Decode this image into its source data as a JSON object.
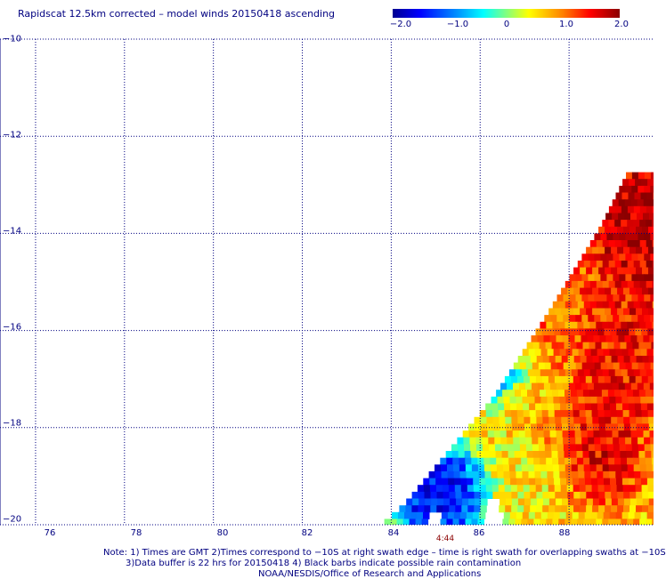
{
  "title": "Rapidscat 12.5km corrected – model winds 20150418 ascending",
  "colorbar": {
    "labels": [
      "−2.0",
      "−1.0",
      "0",
      "1.0",
      "2.0"
    ],
    "range": [
      -2.0,
      2.0
    ]
  },
  "axes": {
    "lat_labels": [
      "−10",
      "−12",
      "−14",
      "−16",
      "−18",
      "−20"
    ],
    "lat_values": [
      -10,
      -12,
      -14,
      -16,
      -18,
      -20
    ],
    "lon_labels": [
      "76",
      "78",
      "80",
      "82",
      "84",
      "86",
      "88"
    ],
    "lon_values": [
      76,
      78,
      80,
      82,
      84,
      86,
      88
    ],
    "lon_range": [
      75.2,
      89.9
    ],
    "lat_range": [
      -20,
      -10
    ],
    "grid": "dotted"
  },
  "pass_time": "4:44",
  "notes": [
    "Note: 1) Times are GMT 2)Times correspond to −10S at right swath edge – time is right swath for overlapping swaths at −10S",
    "3)Data buffer is 22 hrs for 20150418 4) Black barbs indicate possible rain contamination",
    "NOAA/NESDIS/Office of Research and Applications"
  ],
  "colors": {
    "text": "#000080",
    "grid": "#000080",
    "time_label": "#8b0000"
  },
  "chart_data": {
    "type": "heatmap",
    "title": "Rapidscat 12.5km corrected – model winds 20150418 ascending",
    "value_range": [
      -2.0,
      2.0
    ],
    "swath_edge": [
      {
        "lon": 89.3,
        "lat": -12.7
      },
      {
        "lon": 88.7,
        "lat": -13.8
      },
      {
        "lon": 87.5,
        "lat": -15.6
      },
      {
        "lon": 86.3,
        "lat": -17.3
      },
      {
        "lon": 85.3,
        "lat": -18.4
      },
      {
        "lon": 84.3,
        "lat": -19.5
      },
      {
        "lon": 83.7,
        "lat": -20.0
      }
    ],
    "regions": [
      {
        "desc_value": 2.0,
        "lon": [
          88.8,
          89.9
        ],
        "lat": [
          -12.7,
          -15.0
        ]
      },
      {
        "desc_value": 1.2,
        "lon": [
          87.2,
          88.8
        ],
        "lat": [
          -14.0,
          -16.0
        ]
      },
      {
        "desc_value": 1.6,
        "lon": [
          88.5,
          89.9
        ],
        "lat": [
          -15.5,
          -17.5
        ]
      },
      {
        "desc_value": -1.2,
        "lon": [
          85.3,
          86.3
        ],
        "lat": [
          -16.3,
          -17.0
        ]
      },
      {
        "desc_value": 1.8,
        "lon": [
          87.7,
          89.0
        ],
        "lat": [
          -17.8,
          -19.2
        ]
      },
      {
        "desc_value": -1.8,
        "lon": [
          84.4,
          85.6
        ],
        "lat": [
          -18.7,
          -20.0
        ]
      },
      {
        "desc_value": 0.4,
        "lon": [
          86.6,
          88.0
        ],
        "lat": [
          -18.0,
          -20.0
        ]
      }
    ]
  }
}
